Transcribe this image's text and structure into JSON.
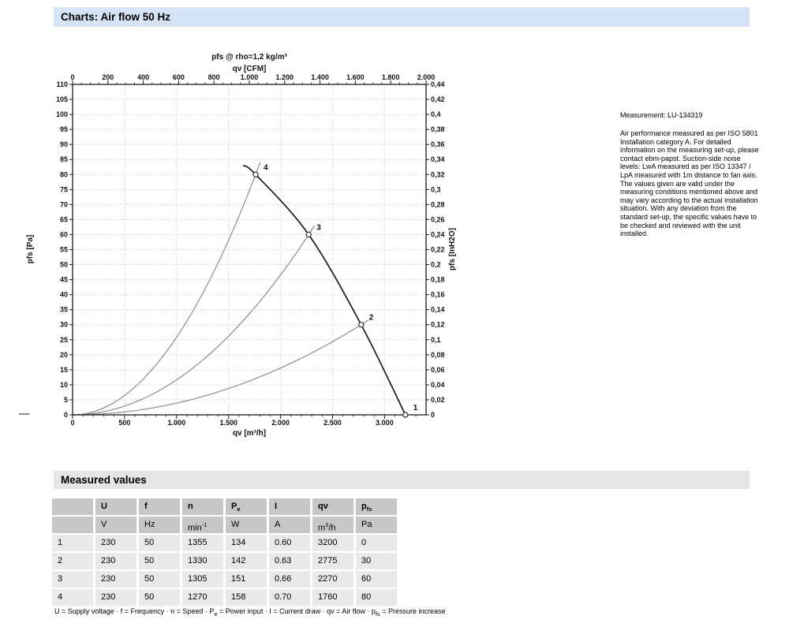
{
  "page": {
    "title": "Charts: Air flow 50 Hz"
  },
  "notes": {
    "measurement": "Measurement: LU-134319",
    "paragraph": "Air performance measured as per ISO 5801 Installation category A. For detailed information on the measuring set-up, please contact ebm-papst. Suction-side noise levels: LwA measured as per ISO 13347 / LpA measured with 1m distance to fan axis. The values given are valid under the measuring conditions mentioned above and may vary according to the actual installation situation. With any deviation from the standard set-up, the specific values have to be checked and reviewed with the unit installed."
  },
  "chart_data": {
    "type": "line",
    "title": "pfs @ rho=1,2 kg/m³",
    "axes": {
      "top": {
        "label": "qv [CFM]",
        "min": 0,
        "max": 2000,
        "major_step": 200,
        "minor_step": 50,
        "tick_labels": [
          "0",
          "200",
          "400",
          "600",
          "800",
          "1.000",
          "1.200",
          "1.400",
          "1.600",
          "1.800",
          "2.000"
        ]
      },
      "bottom": {
        "label": "qv [m³/h]",
        "min": 0,
        "max": 3398.7,
        "major_step": 500,
        "minor_step": 100,
        "tick_labels": [
          "0",
          "500",
          "1.000",
          "1.500",
          "2.000",
          "2.500",
          "3.000"
        ]
      },
      "left": {
        "label": "pfs [Pa]",
        "min": 0,
        "max": 110,
        "major_step": 5,
        "tick_labels": [
          "0",
          "5",
          "10",
          "15",
          "20",
          "25",
          "30",
          "35",
          "40",
          "45",
          "50",
          "55",
          "60",
          "65",
          "70",
          "75",
          "80",
          "85",
          "90",
          "95",
          "100",
          "105",
          "110"
        ]
      },
      "right": {
        "label": "pfs [InH2O]",
        "min": 0,
        "max": 0.44,
        "major_step": 0.02,
        "tick_labels": [
          "0",
          "0,02",
          "0,04",
          "0,06",
          "0,08",
          "0,1",
          "0,12",
          "0,14",
          "0,16",
          "0,18",
          "0,2",
          "0,22",
          "0,24",
          "0,26",
          "0,28",
          "0,3",
          "0,32",
          "0,34",
          "0,36",
          "0,38",
          "0,4",
          "0,42",
          "0,44"
        ]
      }
    },
    "grid": {
      "on": true,
      "x_step_m3h": 500,
      "y_step_pa": 5
    },
    "fan_curve_points_qv_pa": [
      [
        1639,
        83
      ],
      [
        1760,
        80
      ],
      [
        2270,
        60
      ],
      [
        2775,
        30
      ],
      [
        3200,
        0
      ]
    ],
    "system_curve_rule": "pfs = pfs_i·(qv/qv_i)²",
    "system_curve_overshoot": 1.025,
    "operating_points": [
      {
        "label": "1",
        "qv": 3200,
        "pfs": 0,
        "system_curve": false
      },
      {
        "label": "2",
        "qv": 2775,
        "pfs": 30,
        "system_curve": true
      },
      {
        "label": "3",
        "qv": 2270,
        "pfs": 60,
        "system_curve": true
      },
      {
        "label": "4",
        "qv": 1760,
        "pfs": 80,
        "system_curve": true
      }
    ],
    "colors": {
      "fan_curve": "#1a1a1a",
      "system_curve": "#8c8c8c",
      "grid": "#c3c3c3",
      "axis": "#1a1a1a"
    }
  },
  "measured_values": {
    "heading": "Measured values",
    "columns": [
      {
        "t": ""
      },
      {
        "t": "U"
      },
      {
        "t": "f"
      },
      {
        "t": "n"
      },
      {
        "t": "P",
        "sub": "e"
      },
      {
        "t": "I"
      },
      {
        "t": "qv"
      },
      {
        "t": "p",
        "sub": "fs"
      }
    ],
    "units": [
      {
        "t": ""
      },
      {
        "t": "V"
      },
      {
        "t": "Hz"
      },
      {
        "t": "min",
        "sup": "-1"
      },
      {
        "t": "W"
      },
      {
        "t": "A"
      },
      {
        "t": "m",
        "sup": "3",
        "tail": "/h"
      },
      {
        "t": "Pa"
      }
    ],
    "rows": [
      [
        "1",
        "230",
        "50",
        "1355",
        "134",
        "0.60",
        "3200",
        "0"
      ],
      [
        "2",
        "230",
        "50",
        "1330",
        "142",
        "0.63",
        "2775",
        "30"
      ],
      [
        "3",
        "230",
        "50",
        "1305",
        "151",
        "0.66",
        "2270",
        "60"
      ],
      [
        "4",
        "230",
        "50",
        "1270",
        "158",
        "0.70",
        "1760",
        "80"
      ]
    ],
    "legend_parts": [
      {
        "t": "U = Supply voltage · f = Frequency · n = Speed · P"
      },
      {
        "sub": "e"
      },
      {
        "t": " = Power input · I = Current draw · qv = Air flow · p"
      },
      {
        "sub": "fs"
      },
      {
        "t": " = Pressure increase"
      }
    ]
  }
}
